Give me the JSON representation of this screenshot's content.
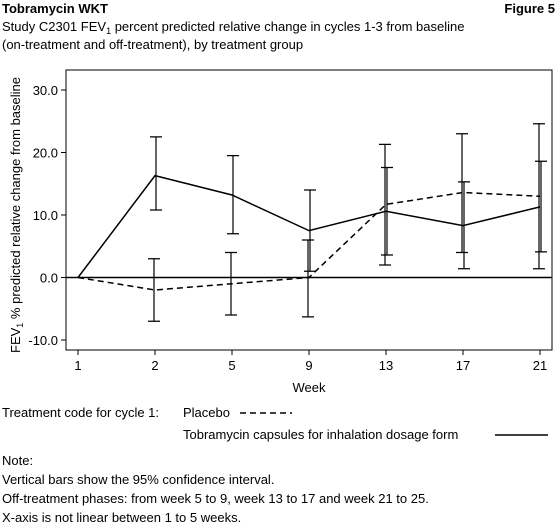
{
  "header": {
    "title": "Tobramycin WKT",
    "figure": "Figure 5"
  },
  "chart_data": {
    "type": "line",
    "subtitle": [
      [
        "Study C2301 FEV",
        "1",
        " percent predicted relative change in cycles 1-3 from baseline"
      ],
      [
        "(on-treatment and off-treatment), by treatment group"
      ]
    ],
    "y_label": [
      "FEV",
      "1",
      " % predicted relative change from baseline"
    ],
    "x_label": "Week",
    "categories": [
      "1",
      "2",
      "5",
      "9",
      "13",
      "17",
      "21"
    ],
    "series": [
      {
        "name": "Placebo",
        "color": "#000000",
        "dash": true,
        "values": [
          0,
          -2,
          -1,
          0,
          11.7,
          13.6,
          13
        ],
        "lower": [
          null,
          -7,
          -6,
          -6.3,
          2,
          4,
          1.4
        ],
        "upper": [
          null,
          3,
          4,
          6,
          21.3,
          23,
          24.6
        ]
      },
      {
        "name": "Tobramycin capsules for inhalation dosage form",
        "color": "#000000",
        "dash": false,
        "values": [
          0,
          16.3,
          13.2,
          7.5,
          10.6,
          8.3,
          11.3
        ],
        "lower": [
          null,
          10.8,
          7,
          1,
          3.6,
          1.4,
          4.1
        ],
        "upper": [
          null,
          22.5,
          19.5,
          14,
          17.6,
          15.3,
          18.6
        ]
      }
    ],
    "ylim": [
      -11.6,
      33.2
    ],
    "yticks": [
      {
        "value": -10,
        "label": "-10.0"
      },
      {
        "value": 0,
        "label": "0.0"
      },
      {
        "value": 10,
        "label": "10.0"
      },
      {
        "value": 20,
        "label": "20.0"
      },
      {
        "value": 30,
        "label": "30.0"
      }
    ],
    "reference_line": 0,
    "legend": {
      "title": "Treatment code for cycle 1:"
    }
  },
  "notes": [
    "Note:",
    "Vertical bars show the 95% confidence interval.",
    "Off-treatment phases: from week 5 to 9, week 13 to 17 and week 21 to 25.",
    "X-axis is not linear between 1 to 5 weeks."
  ]
}
